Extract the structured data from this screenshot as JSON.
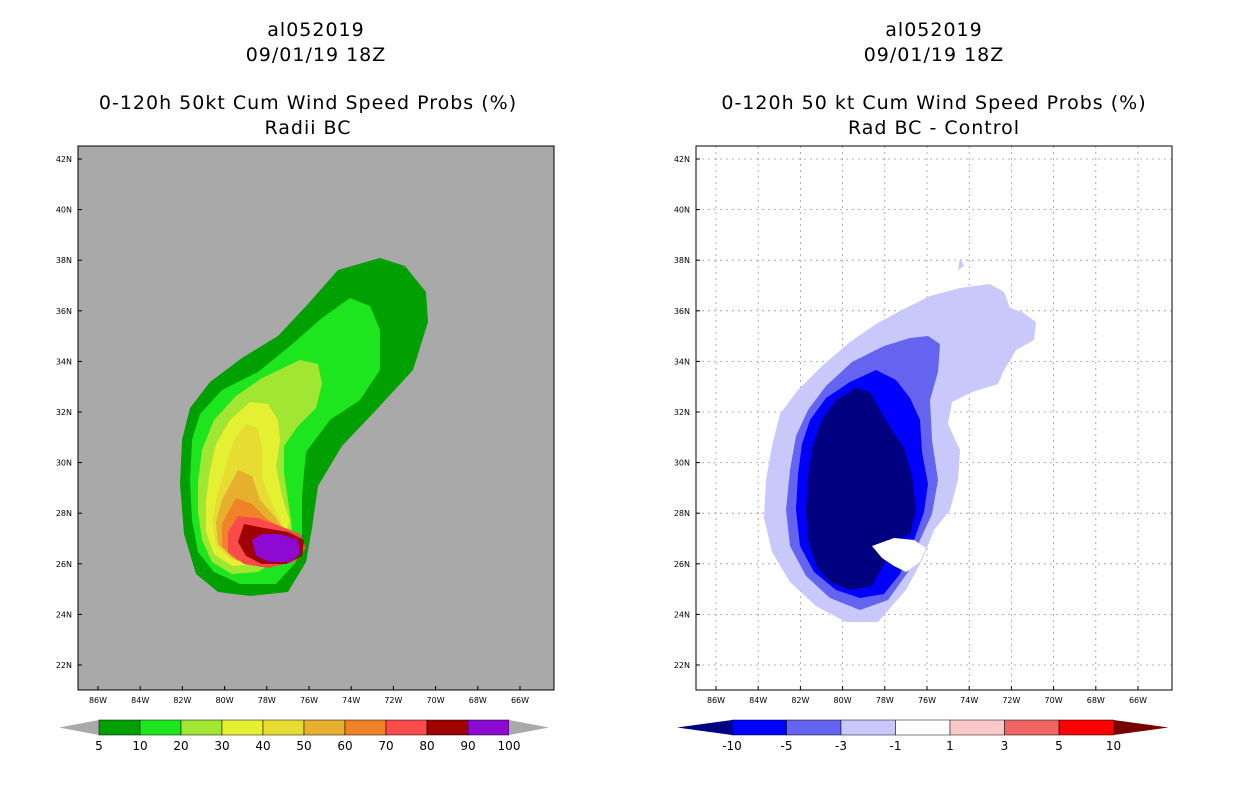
{
  "panels": [
    {
      "storm": "al052019",
      "datetime": "09/01/19 18Z",
      "title": "0-120h 50kt Cum Wind Speed Probs (%)",
      "subtitle": "Radii BC",
      "background": "#a9a9a9",
      "gridlines": false,
      "lat_labels": [
        "42N",
        "40N",
        "38N",
        "36N",
        "34N",
        "32N",
        "30N",
        "28N",
        "26N",
        "24N",
        "22N"
      ],
      "lon_labels": [
        "86W",
        "84W",
        "82W",
        "80W",
        "78W",
        "76W",
        "74W",
        "72W",
        "70W",
        "68W",
        "66W"
      ],
      "colorbar": {
        "labels": [
          "5",
          "10",
          "20",
          "30",
          "40",
          "50",
          "60",
          "70",
          "80",
          "90",
          "100"
        ],
        "under_color": "#a9a9a9",
        "over_color": "#a9a9a9",
        "colors": [
          "#00a000",
          "#1ee61e",
          "#a0e632",
          "#e6f032",
          "#e6dc32",
          "#e6af2d",
          "#f08228",
          "#fa4b4b",
          "#a00000",
          "#8c0ad2"
        ]
      }
    },
    {
      "storm": "al052019",
      "datetime": "09/01/19 18Z",
      "title": "0-120h 50 kt Cum Wind Speed Probs (%)",
      "subtitle": "Rad BC - Control",
      "background": "#ffffff",
      "gridlines": true,
      "lat_labels": [
        "42N",
        "40N",
        "38N",
        "36N",
        "34N",
        "32N",
        "30N",
        "28N",
        "26N",
        "24N",
        "22N"
      ],
      "lon_labels": [
        "86W",
        "84W",
        "82W",
        "80W",
        "78W",
        "76W",
        "74W",
        "72W",
        "70W",
        "68W",
        "66W"
      ],
      "colorbar": {
        "labels": [
          "-10",
          "-5",
          "-3",
          "-1",
          "1",
          "3",
          "5",
          "10"
        ],
        "under_color": "#000080",
        "over_color": "#780000",
        "colors": [
          "#0000ff",
          "#6464f0",
          "#c8c8fa",
          "#ffffff",
          "#fac8c8",
          "#f06464",
          "#ff0000"
        ]
      }
    }
  ]
}
